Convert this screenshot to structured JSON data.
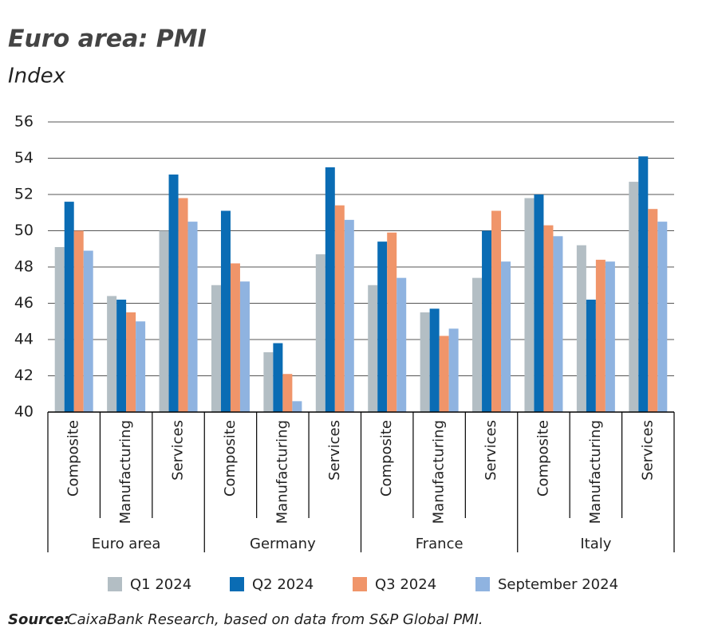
{
  "chart_data": {
    "type": "bar",
    "title": "Euro area: PMI",
    "subtitle": "Index",
    "groups": [
      "Euro area",
      "Germany",
      "France",
      "Italy"
    ],
    "categories": [
      "Composite",
      "Manufacturing",
      "Services",
      "Composite",
      "Manufacturing",
      "Services",
      "Composite",
      "Manufacturing",
      "Services",
      "Composite",
      "Manufacturing",
      "Services"
    ],
    "series": [
      {
        "name": "Q1 2024",
        "color": "#b3bec4",
        "values": [
          49.1,
          46.4,
          50.0,
          47.0,
          43.3,
          48.7,
          47.0,
          45.5,
          47.4,
          51.8,
          49.2,
          52.7
        ]
      },
      {
        "name": "Q2 2024",
        "color": "#0a6cb4",
        "values": [
          51.6,
          46.2,
          53.1,
          51.1,
          43.8,
          53.5,
          49.4,
          45.7,
          50.0,
          52.0,
          46.2,
          54.1
        ]
      },
      {
        "name": "Q3 2024",
        "color": "#f0956a",
        "values": [
          50.0,
          45.5,
          51.8,
          48.2,
          42.1,
          51.4,
          49.9,
          44.2,
          51.1,
          50.3,
          48.4,
          51.2
        ]
      },
      {
        "name": "September 2024",
        "color": "#8fb3e0",
        "values": [
          48.9,
          45.0,
          50.5,
          47.2,
          40.6,
          50.6,
          47.4,
          44.6,
          48.3,
          49.7,
          48.3,
          50.5
        ]
      }
    ],
    "ylim": [
      40,
      56
    ],
    "yticks": [
      40,
      42,
      44,
      46,
      48,
      50,
      52,
      54,
      56
    ],
    "grid": true,
    "source": {
      "label": "Source:",
      "text": "CaixaBank Research, based on data from S&P Global PMI."
    }
  }
}
